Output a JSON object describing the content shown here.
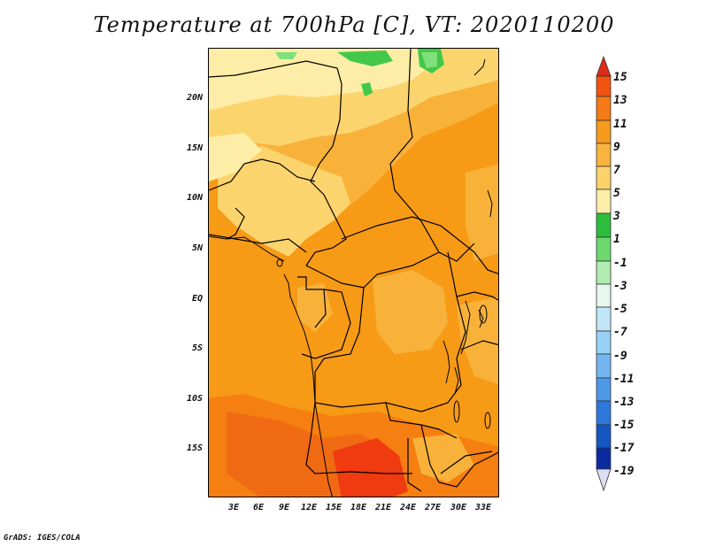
{
  "title": "Temperature at 700hPa [C], VT: 2020110200",
  "footer": "GrADS: IGES/COLA",
  "y_ticks": [
    "20N",
    "15N",
    "10N",
    "5N",
    "EQ",
    "5S",
    "10S",
    "15S"
  ],
  "x_ticks": [
    "3E",
    "6E",
    "9E",
    "12E",
    "15E",
    "18E",
    "21E",
    "24E",
    "27E",
    "30E",
    "33E"
  ],
  "colorbar": {
    "labels": [
      "15",
      "13",
      "11",
      "9",
      "7",
      "5",
      "3",
      "1",
      "-1",
      "-3",
      "-5",
      "-7",
      "-9",
      "-11",
      "-13",
      "-15",
      "-17",
      "-19"
    ],
    "colors": [
      "#dd2a1a",
      "#f25410",
      "#f57b16",
      "#f59a1a",
      "#f8b43c",
      "#fbd36a",
      "#fdeeaa",
      "#2cbd3c",
      "#6cd86e",
      "#b2ecb0",
      "#e6f8ee",
      "#c0e6f8",
      "#98d0f6",
      "#74b6f0",
      "#4e98e8",
      "#2e78dc",
      "#1656c0",
      "#0a2aa0",
      "#081268",
      "#dcdcf2"
    ]
  },
  "colors": {
    "c15": "#f06a14",
    "c13": "#f57f10",
    "c11": "#f79a16",
    "c9": "#f8b23a",
    "c7": "#fcd46e",
    "c5": "#fdeda6",
    "c3": "#43c84a",
    "c1": "#7fe07c",
    "warm_core": "#f03a10",
    "boundary": "#000000"
  }
}
